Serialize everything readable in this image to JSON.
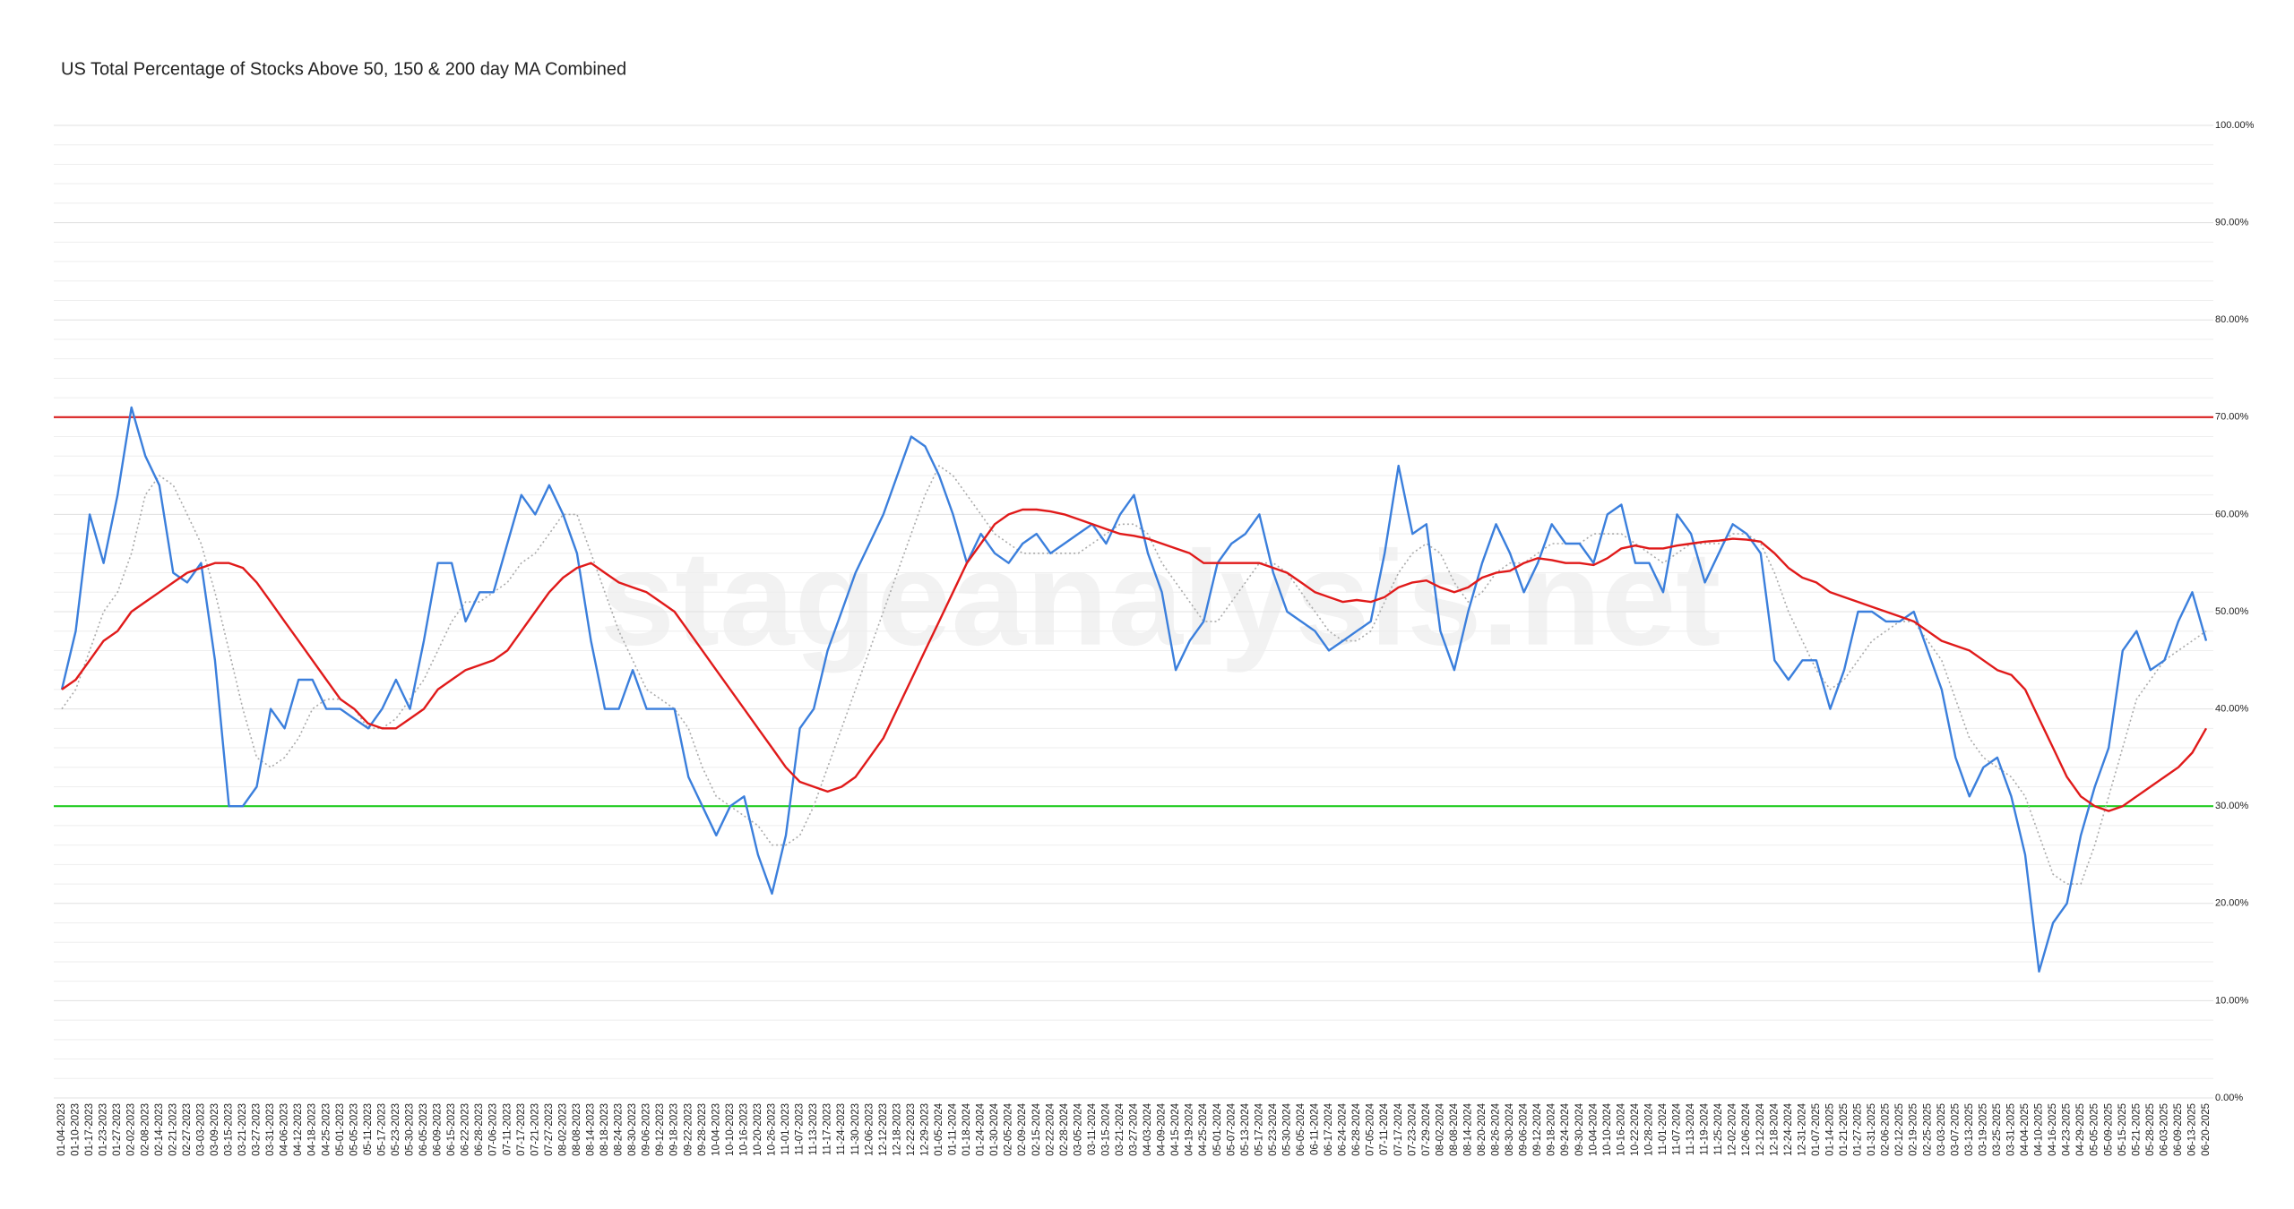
{
  "chart_data": {
    "type": "line",
    "title": "US Total Percentage of Stocks Above 50, 150 & 200 day MA Combined",
    "watermark": "stageanalysis.net",
    "categories": [
      "01-04-2023",
      "01-10-2023",
      "01-17-2023",
      "01-23-2023",
      "01-27-2023",
      "02-02-2023",
      "02-08-2023",
      "02-14-2023",
      "02-21-2023",
      "02-27-2023",
      "03-03-2023",
      "03-09-2023",
      "03-15-2023",
      "03-21-2023",
      "03-27-2023",
      "03-31-2023",
      "04-06-2023",
      "04-12-2023",
      "04-18-2023",
      "04-25-2023",
      "05-01-2023",
      "05-05-2023",
      "05-11-2023",
      "05-17-2023",
      "05-23-2023",
      "05-30-2023",
      "06-05-2023",
      "06-09-2023",
      "06-15-2023",
      "06-22-2023",
      "06-28-2023",
      "07-06-2023",
      "07-11-2023",
      "07-17-2023",
      "07-21-2023",
      "07-27-2023",
      "08-02-2023",
      "08-08-2023",
      "08-14-2023",
      "08-18-2023",
      "08-24-2023",
      "08-30-2023",
      "09-06-2023",
      "09-12-2023",
      "09-18-2023",
      "09-22-2023",
      "09-28-2023",
      "10-04-2023",
      "10-10-2023",
      "10-16-2023",
      "10-20-2023",
      "10-26-2023",
      "11-01-2023",
      "11-07-2023",
      "11-13-2023",
      "11-17-2023",
      "11-24-2023",
      "11-30-2023",
      "12-06-2023",
      "12-12-2023",
      "12-18-2023",
      "12-22-2023",
      "12-29-2023",
      "01-05-2024",
      "01-11-2024",
      "01-18-2024",
      "01-24-2024",
      "01-30-2024",
      "02-05-2024",
      "02-09-2024",
      "02-15-2024",
      "02-22-2024",
      "02-28-2024",
      "03-05-2024",
      "03-11-2024",
      "03-15-2024",
      "03-21-2024",
      "03-27-2024",
      "04-03-2024",
      "04-09-2024",
      "04-15-2024",
      "04-19-2024",
      "04-25-2024",
      "05-01-2024",
      "05-07-2024",
      "05-13-2024",
      "05-17-2024",
      "05-23-2024",
      "05-30-2024",
      "06-05-2024",
      "06-11-2024",
      "06-17-2024",
      "06-24-2024",
      "06-28-2024",
      "07-05-2024",
      "07-11-2024",
      "07-17-2024",
      "07-23-2024",
      "07-29-2024",
      "08-02-2024",
      "08-08-2024",
      "08-14-2024",
      "08-20-2024",
      "08-26-2024",
      "08-30-2024",
      "09-06-2024",
      "09-12-2024",
      "09-18-2024",
      "09-24-2024",
      "09-30-2024",
      "10-04-2024",
      "10-10-2024",
      "10-16-2024",
      "10-22-2024",
      "10-28-2024",
      "11-01-2024",
      "11-07-2024",
      "11-13-2024",
      "11-19-2024",
      "11-25-2024",
      "12-02-2024",
      "12-06-2024",
      "12-12-2024",
      "12-18-2024",
      "12-24-2024",
      "12-31-2024",
      "01-07-2025",
      "01-14-2025",
      "01-21-2025",
      "01-27-2025",
      "01-31-2025",
      "02-06-2025",
      "02-12-2025",
      "02-19-2025",
      "02-25-2025",
      "03-03-2025",
      "03-07-2025",
      "03-13-2025",
      "03-19-2025",
      "03-25-2025",
      "03-31-2025",
      "04-04-2025",
      "04-10-2025",
      "04-16-2025",
      "04-23-2025",
      "04-29-2025",
      "05-05-2025",
      "05-09-2025",
      "05-15-2025",
      "05-21-2025",
      "05-28-2025",
      "06-03-2025",
      "06-09-2025",
      "06-13-2025",
      "06-20-2025"
    ],
    "series": [
      {
        "color": "#aaaaaa",
        "dash": true,
        "values": [
          40,
          42,
          46,
          50,
          52,
          56,
          62,
          64,
          63,
          60,
          57,
          52,
          46,
          40,
          35,
          34,
          35,
          37,
          40,
          41,
          41,
          40,
          38,
          38,
          39,
          41,
          43,
          46,
          49,
          51,
          51,
          52,
          53,
          55,
          56,
          58,
          60,
          60,
          56,
          52,
          48,
          45,
          42,
          41,
          40,
          38,
          34,
          31,
          30,
          29,
          28,
          26,
          26,
          27,
          30,
          34,
          38,
          42,
          46,
          50,
          54,
          58,
          62,
          65,
          64,
          62,
          60,
          58,
          57,
          56,
          56,
          56,
          56,
          56,
          57,
          58,
          59,
          59,
          58,
          55,
          53,
          51,
          49,
          49,
          51,
          53,
          55,
          55,
          54,
          52,
          50,
          48,
          47,
          47,
          48,
          51,
          54,
          56,
          57,
          56,
          53,
          51,
          52,
          54,
          55,
          55,
          56,
          57,
          57,
          57,
          58,
          58,
          58,
          57,
          56,
          55,
          56,
          57,
          57,
          57,
          58,
          58,
          57,
          54,
          50,
          47,
          44,
          42,
          43,
          45,
          47,
          48,
          49,
          49,
          47,
          45,
          41,
          37,
          35,
          34,
          33,
          31,
          27,
          23,
          22,
          22,
          26,
          31,
          36,
          41,
          43,
          45,
          46,
          47,
          48
        ]
      },
      {
        "color": "#3b7fdc",
        "values": [
          42,
          48,
          60,
          55,
          62,
          71,
          66,
          63,
          54,
          53,
          55,
          45,
          30,
          30,
          32,
          40,
          38,
          43,
          43,
          40,
          40,
          39,
          38,
          40,
          43,
          40,
          47,
          55,
          55,
          49,
          52,
          52,
          57,
          62,
          60,
          63,
          60,
          56,
          47,
          40,
          40,
          44,
          40,
          40,
          40,
          33,
          30,
          27,
          30,
          31,
          25,
          21,
          27,
          38,
          40,
          46,
          50,
          54,
          57,
          60,
          64,
          68,
          67,
          64,
          60,
          55,
          58,
          56,
          55,
          57,
          58,
          56,
          57,
          58,
          59,
          57,
          60,
          62,
          56,
          52,
          44,
          47,
          49,
          55,
          57,
          58,
          60,
          54,
          50,
          49,
          48,
          46,
          47,
          48,
          49,
          56,
          65,
          58,
          59,
          48,
          44,
          50,
          55,
          59,
          56,
          52,
          55,
          59,
          57,
          57,
          55,
          60,
          61,
          55,
          55,
          52,
          60,
          58,
          53,
          56,
          59,
          58,
          56,
          45,
          43,
          45,
          45,
          40,
          44,
          50,
          50,
          49,
          49,
          50,
          46,
          42,
          35,
          31,
          34,
          35,
          31,
          25,
          13,
          18,
          20,
          27,
          32,
          36,
          46,
          48,
          44,
          45,
          49,
          52,
          47
        ]
      },
      {
        "color": "#e01a1a",
        "values": [
          42,
          43,
          45,
          47,
          48,
          50,
          51,
          52,
          53,
          54,
          54.5,
          55,
          55,
          54.5,
          53,
          51,
          49,
          47,
          45,
          43,
          41,
          40,
          38.5,
          38,
          38,
          39,
          40,
          42,
          43,
          44,
          44.5,
          45,
          46,
          48,
          50,
          52,
          53.5,
          54.5,
          55,
          54,
          53,
          52.5,
          52,
          51,
          50,
          48,
          46,
          44,
          42,
          40,
          38,
          36,
          34,
          32.5,
          32,
          31.5,
          32,
          33,
          35,
          37,
          40,
          43,
          46,
          49,
          52,
          55,
          57,
          59,
          60,
          60.5,
          60.5,
          60.3,
          60,
          59.5,
          59,
          58.5,
          58,
          57.8,
          57.5,
          57,
          56.5,
          56,
          55,
          55,
          55,
          55,
          55,
          54.5,
          54,
          53,
          52,
          51.5,
          51,
          51.2,
          51,
          51.5,
          52.5,
          53,
          53.2,
          52.5,
          52,
          52.5,
          53.5,
          54,
          54.2,
          55,
          55.5,
          55.3,
          55,
          55,
          54.8,
          55.5,
          56.5,
          56.8,
          56.5,
          56.5,
          56.8,
          57,
          57.2,
          57.3,
          57.5,
          57.4,
          57.2,
          56,
          54.5,
          53.5,
          53,
          52,
          51.5,
          51,
          50.5,
          50,
          49.5,
          49,
          48,
          47,
          46.5,
          46,
          45,
          44,
          43.5,
          42,
          39,
          36,
          33,
          31,
          30,
          29.5,
          30,
          31,
          32,
          33,
          34,
          35.5,
          38
        ]
      }
    ],
    "reference_lines": [
      {
        "value": 70,
        "color": "#d92020"
      },
      {
        "value": 30,
        "color": "#22cc22"
      }
    ],
    "ylim": [
      0,
      100
    ],
    "yticks": [
      {
        "value": 0,
        "label": "0.00%"
      },
      {
        "value": 10,
        "label": "10.00%"
      },
      {
        "value": 20,
        "label": "20.00%"
      },
      {
        "value": 30,
        "label": "30.00%"
      },
      {
        "value": 40,
        "label": "40.00%"
      },
      {
        "value": 50,
        "label": "50.00%"
      },
      {
        "value": 60,
        "label": "60.00%"
      },
      {
        "value": 70,
        "label": "70.00%"
      },
      {
        "value": 80,
        "label": "80.00%"
      },
      {
        "value": 90,
        "label": "90.00%"
      },
      {
        "value": 100,
        "label": "100.00%"
      }
    ],
    "minor_yticks": [
      2,
      4,
      6,
      8,
      12,
      14,
      16,
      18,
      22,
      24,
      26,
      28,
      32,
      34,
      36,
      38,
      42,
      44,
      46,
      48,
      52,
      54,
      56,
      58,
      62,
      64,
      66,
      68,
      72,
      74,
      76,
      78,
      82,
      84,
      86,
      88,
      92,
      94,
      96,
      98
    ],
    "grid": true
  }
}
